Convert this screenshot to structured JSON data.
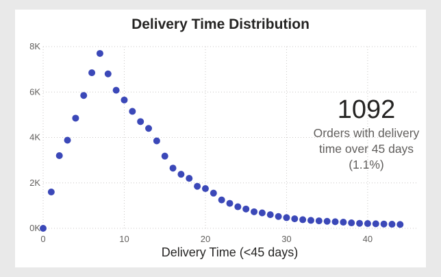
{
  "chart_data": {
    "type": "scatter",
    "title": "Delivery Time Distribution",
    "xlabel": "Delivery Time (<45 days)",
    "ylabel": "",
    "xlim": [
      0,
      46
    ],
    "ylim": [
      0,
      8000
    ],
    "x_ticks": [
      0,
      10,
      20,
      30,
      40
    ],
    "y_ticks": [
      0,
      2000,
      4000,
      6000,
      8000
    ],
    "y_tick_labels": [
      "0K",
      "2K",
      "4K",
      "6K",
      "8K"
    ],
    "grid": true,
    "point_color": "#3b48b8",
    "points": {
      "x": [
        0,
        1,
        2,
        3,
        4,
        5,
        6,
        7,
        8,
        9,
        10,
        11,
        12,
        13,
        14,
        15,
        16,
        17,
        18,
        19,
        20,
        21,
        22,
        23,
        24,
        25,
        26,
        27,
        28,
        29,
        30,
        31,
        32,
        33,
        34,
        35,
        36,
        37,
        38,
        39,
        40,
        41,
        42,
        43,
        44
      ],
      "y": [
        0,
        1600,
        3200,
        3880,
        4850,
        5850,
        6850,
        7700,
        6800,
        6080,
        5650,
        5150,
        4700,
        4400,
        3850,
        3180,
        2650,
        2380,
        2200,
        1850,
        1750,
        1550,
        1250,
        1100,
        950,
        850,
        730,
        680,
        600,
        520,
        470,
        420,
        380,
        350,
        330,
        310,
        290,
        270,
        240,
        220,
        210,
        200,
        190,
        180,
        170
      ]
    }
  },
  "kpi": {
    "value": "1092",
    "label_line1": "Orders with delivery",
    "label_line2": "time over 45 days",
    "label_line3": "(1.1%)"
  }
}
